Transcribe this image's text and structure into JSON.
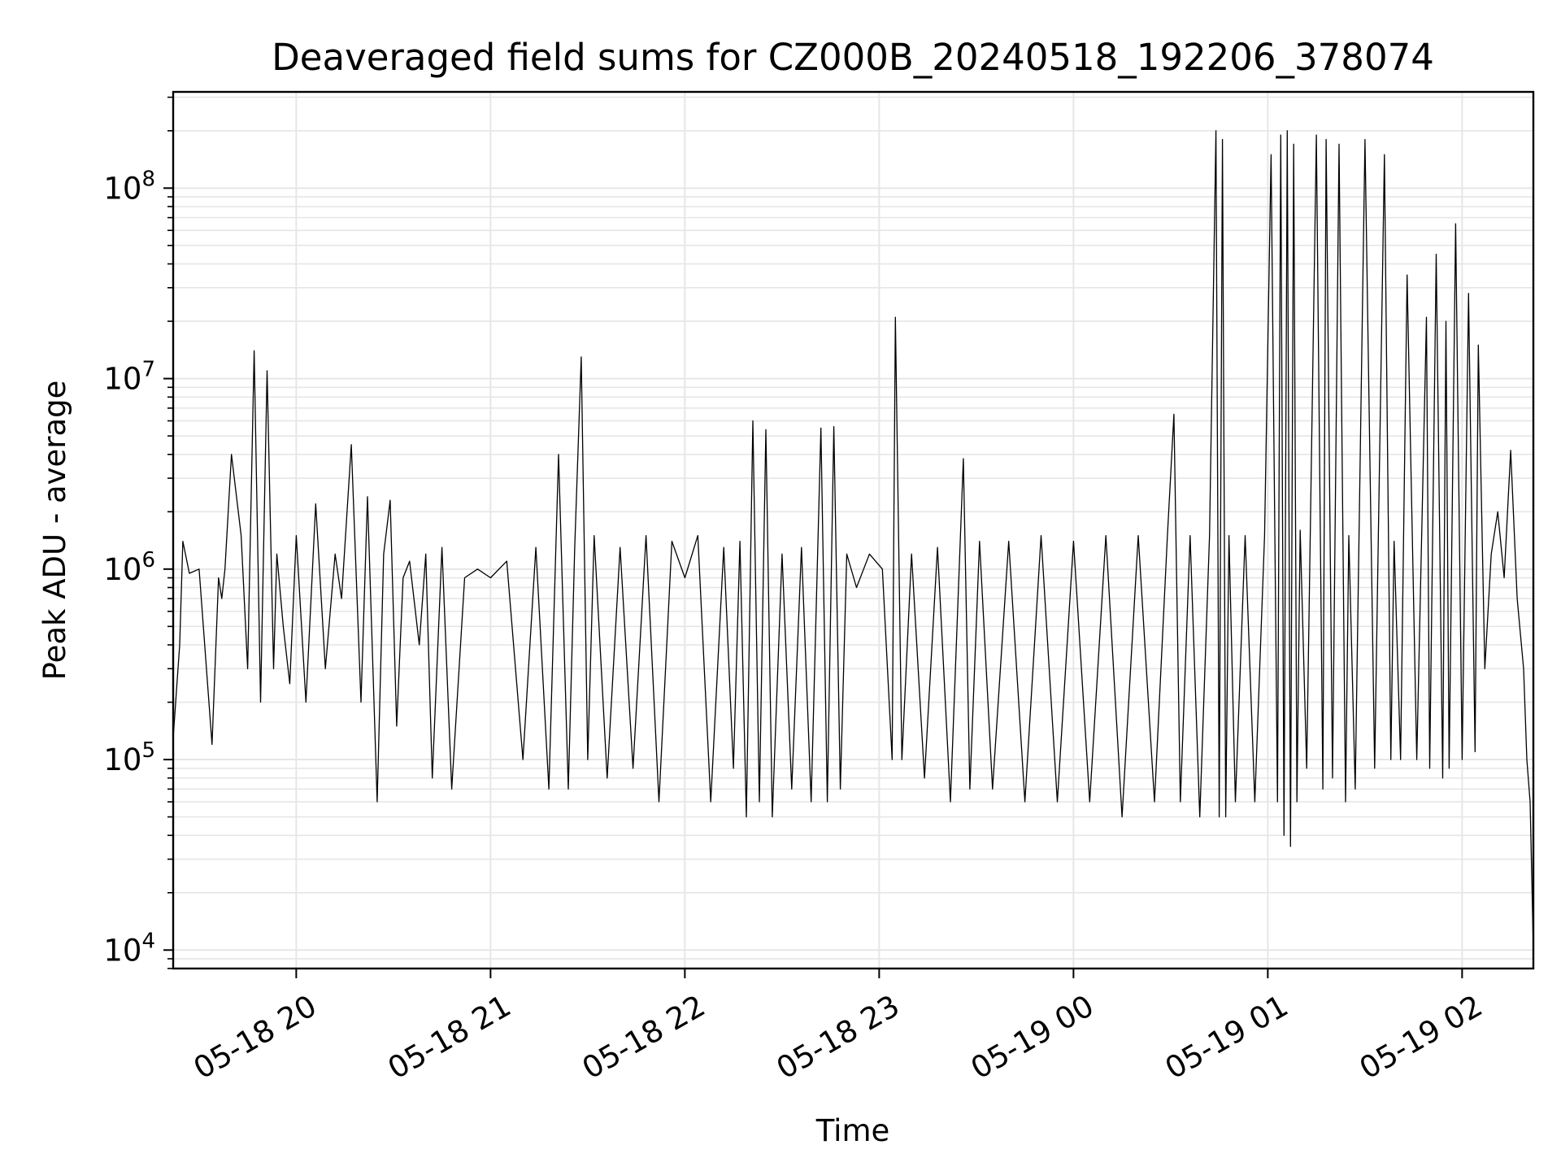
{
  "chart_data": {
    "type": "line",
    "title": "Deaveraged field sums for CZ000B_20240518_192206_378074",
    "xlabel": "Time",
    "ylabel": "Peak ADU - average",
    "xlim": [
      "2024-05-18 19:22",
      "2024-05-19 02:22"
    ],
    "ylim": [
      8000,
      320000000
    ],
    "yscale": "log",
    "grid": true,
    "line_color": "#000000",
    "grid_color": "#e6e6e6",
    "x_ticks": [
      {
        "value": "2024-05-18 20:00",
        "label": "05-18 20"
      },
      {
        "value": "2024-05-18 21:00",
        "label": "05-18 21"
      },
      {
        "value": "2024-05-18 22:00",
        "label": "05-18 22"
      },
      {
        "value": "2024-05-18 23:00",
        "label": "05-18 23"
      },
      {
        "value": "2024-05-19 00:00",
        "label": "05-19 00"
      },
      {
        "value": "2024-05-19 01:00",
        "label": "05-19 01"
      },
      {
        "value": "2024-05-19 02:00",
        "label": "05-19 02"
      }
    ],
    "y_ticks": [
      {
        "value": 10000,
        "base": "10",
        "exp": "4"
      },
      {
        "value": 100000,
        "base": "10",
        "exp": "5"
      },
      {
        "value": 1000000,
        "base": "10",
        "exp": "6"
      },
      {
        "value": 10000000,
        "base": "10",
        "exp": "7"
      },
      {
        "value": 100000000,
        "base": "10",
        "exp": "8"
      }
    ],
    "series": [
      {
        "x": [
          "2024-05-18 19:22",
          "2024-05-18 19:24",
          "2024-05-18 19:25",
          "2024-05-18 19:27",
          "2024-05-18 19:30",
          "2024-05-18 19:34",
          "2024-05-18 19:36",
          "2024-05-18 19:37",
          "2024-05-18 19:38",
          "2024-05-18 19:40",
          "2024-05-18 19:43",
          "2024-05-18 19:45",
          "2024-05-18 19:47",
          "2024-05-18 19:49",
          "2024-05-18 19:51",
          "2024-05-18 19:53",
          "2024-05-18 19:54",
          "2024-05-18 19:56",
          "2024-05-18 19:58",
          "2024-05-18 20:00",
          "2024-05-18 20:03",
          "2024-05-18 20:06",
          "2024-05-18 20:09",
          "2024-05-18 20:12",
          "2024-05-18 20:14",
          "2024-05-18 20:17",
          "2024-05-18 20:20",
          "2024-05-18 20:22",
          "2024-05-18 20:25",
          "2024-05-18 20:27",
          "2024-05-18 20:29",
          "2024-05-18 20:31",
          "2024-05-18 20:33",
          "2024-05-18 20:35",
          "2024-05-18 20:38",
          "2024-05-18 20:40",
          "2024-05-18 20:42",
          "2024-05-18 20:45",
          "2024-05-18 20:48",
          "2024-05-18 20:52",
          "2024-05-18 20:56",
          "2024-05-18 21:00",
          "2024-05-18 21:05",
          "2024-05-18 21:10",
          "2024-05-18 21:14",
          "2024-05-18 21:18",
          "2024-05-18 21:21",
          "2024-05-18 21:24",
          "2024-05-18 21:26",
          "2024-05-18 21:28",
          "2024-05-18 21:30",
          "2024-05-18 21:32",
          "2024-05-18 21:36",
          "2024-05-18 21:40",
          "2024-05-18 21:44",
          "2024-05-18 21:48",
          "2024-05-18 21:52",
          "2024-05-18 21:56",
          "2024-05-18 22:00",
          "2024-05-18 22:04",
          "2024-05-18 22:08",
          "2024-05-18 22:12",
          "2024-05-18 22:15",
          "2024-05-18 22:17",
          "2024-05-18 22:19",
          "2024-05-18 22:21",
          "2024-05-18 22:23",
          "2024-05-18 22:25",
          "2024-05-18 22:27",
          "2024-05-18 22:30",
          "2024-05-18 22:33",
          "2024-05-18 22:36",
          "2024-05-18 22:39",
          "2024-05-18 22:42",
          "2024-05-18 22:44",
          "2024-05-18 22:46",
          "2024-05-18 22:48",
          "2024-05-18 22:50",
          "2024-05-18 22:53",
          "2024-05-18 22:57",
          "2024-05-18 23:01",
          "2024-05-18 23:04",
          "2024-05-18 23:05",
          "2024-05-18 23:07",
          "2024-05-18 23:10",
          "2024-05-18 23:14",
          "2024-05-18 23:18",
          "2024-05-18 23:22",
          "2024-05-18 23:26",
          "2024-05-18 23:28",
          "2024-05-18 23:31",
          "2024-05-18 23:35",
          "2024-05-18 23:40",
          "2024-05-18 23:45",
          "2024-05-18 23:50",
          "2024-05-18 23:55",
          "2024-05-19 00:00",
          "2024-05-19 00:05",
          "2024-05-19 00:10",
          "2024-05-19 00:15",
          "2024-05-19 00:20",
          "2024-05-19 00:25",
          "2024-05-19 00:29",
          "2024-05-19 00:31",
          "2024-05-19 00:33",
          "2024-05-19 00:36",
          "2024-05-19 00:39",
          "2024-05-19 00:42",
          "2024-05-19 00:44",
          "2024-05-19 00:45",
          "2024-05-19 00:46",
          "2024-05-19 00:47",
          "2024-05-19 00:48",
          "2024-05-19 00:50",
          "2024-05-19 00:53",
          "2024-05-19 00:56",
          "2024-05-19 00:59",
          "2024-05-19 01:01",
          "2024-05-19 01:03",
          "2024-05-19 01:04",
          "2024-05-19 01:05",
          "2024-05-19 01:06",
          "2024-05-19 01:07",
          "2024-05-19 01:08",
          "2024-05-19 01:09",
          "2024-05-19 01:10",
          "2024-05-19 01:12",
          "2024-05-19 01:15",
          "2024-05-19 01:17",
          "2024-05-19 01:18",
          "2024-05-19 01:20",
          "2024-05-19 01:22",
          "2024-05-19 01:24",
          "2024-05-19 01:25",
          "2024-05-19 01:27",
          "2024-05-19 01:30",
          "2024-05-19 01:33",
          "2024-05-19 01:36",
          "2024-05-19 01:38",
          "2024-05-19 01:39",
          "2024-05-19 01:41",
          "2024-05-19 01:43",
          "2024-05-19 01:46",
          "2024-05-19 01:49",
          "2024-05-19 01:50",
          "2024-05-19 01:52",
          "2024-05-19 01:54",
          "2024-05-19 01:55",
          "2024-05-19 01:56",
          "2024-05-19 01:58",
          "2024-05-19 02:00",
          "2024-05-19 02:02",
          "2024-05-19 02:04",
          "2024-05-19 02:05",
          "2024-05-19 02:07",
          "2024-05-19 02:09",
          "2024-05-19 02:11",
          "2024-05-19 02:13",
          "2024-05-19 02:15",
          "2024-05-19 02:17",
          "2024-05-19 02:19",
          "2024-05-19 02:20",
          "2024-05-19 02:21",
          "2024-05-19 02:22"
        ],
        "y": [
          130000,
          400000,
          1400000,
          950000,
          1000000,
          120000,
          900000,
          700000,
          1000000,
          4000000,
          1500000,
          300000,
          14000000,
          200000,
          11000000,
          300000,
          1200000,
          500000,
          250000,
          1500000,
          200000,
          2200000,
          300000,
          1200000,
          700000,
          4500000,
          200000,
          2400000,
          60000,
          1200000,
          2300000,
          150000,
          900000,
          1100000,
          400000,
          1200000,
          80000,
          1300000,
          70000,
          900000,
          1000000,
          900000,
          1100000,
          100000,
          1300000,
          70000,
          4000000,
          70000,
          1300000,
          13000000,
          100000,
          1500000,
          80000,
          1300000,
          90000,
          1500000,
          60000,
          1400000,
          900000,
          1500000,
          60000,
          1300000,
          90000,
          1400000,
          50000,
          6000000,
          60000,
          5400000,
          50000,
          1200000,
          70000,
          1300000,
          60000,
          5500000,
          60000,
          5600000,
          70000,
          1200000,
          800000,
          1200000,
          1000000,
          100000,
          21000000,
          100000,
          1200000,
          80000,
          1300000,
          60000,
          3800000,
          70000,
          1400000,
          70000,
          1400000,
          60000,
          1500000,
          60000,
          1400000,
          60000,
          1500000,
          50000,
          1500000,
          60000,
          1500000,
          6500000,
          60000,
          1500000,
          50000,
          1500000,
          200000000,
          50000,
          180000000,
          50000,
          1500000,
          60000,
          1500000,
          60000,
          1500000,
          150000000,
          60000,
          190000000,
          40000,
          200000000,
          35000,
          170000000,
          60000,
          1600000,
          90000,
          190000000,
          70000,
          180000000,
          80000,
          170000000,
          60000,
          1500000,
          70000,
          180000000,
          90000,
          150000000,
          100000,
          1400000,
          100000,
          35000000,
          100000,
          21000000,
          90000,
          45000000,
          80000,
          20000000,
          90000,
          65000000,
          100000,
          28000000,
          110000,
          15000000,
          300000,
          1200000,
          2000000,
          900000,
          4200000,
          700000,
          300000,
          100000,
          60000,
          10000
        ]
      }
    ]
  }
}
